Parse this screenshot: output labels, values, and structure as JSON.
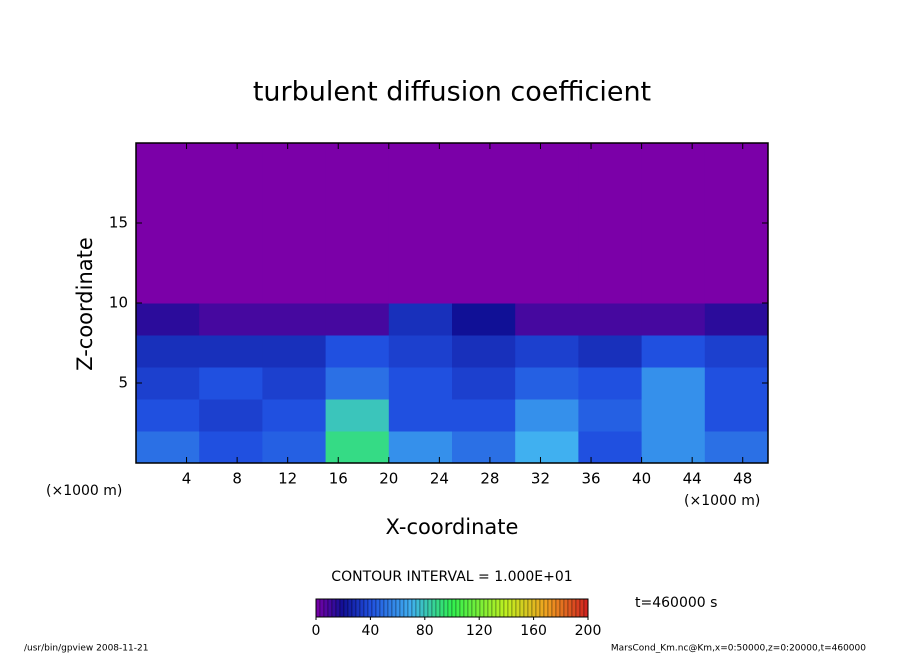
{
  "chart_data": {
    "type": "heatmap",
    "title": "turbulent diffusion coefficient",
    "x_label": "X-coordinate",
    "y_label": "Z-coordinate",
    "x_unit": "(×1000 m)",
    "y_unit": "(×1000 m)",
    "xlim": [
      0,
      50
    ],
    "xticks": [
      4,
      8,
      12,
      16,
      20,
      24,
      28,
      32,
      36,
      40,
      44,
      48
    ],
    "ylim": [
      0,
      20
    ],
    "yticks": [
      5,
      10,
      15
    ],
    "x_bins": [
      0,
      5,
      10,
      15,
      20,
      25,
      30,
      35,
      40,
      45,
      50
    ],
    "y_bins": [
      0,
      2,
      4,
      6,
      8,
      10,
      12,
      14,
      16,
      18,
      20
    ],
    "values": [
      [
        50,
        40,
        45,
        90,
        60,
        50,
        70,
        40,
        60,
        50
      ],
      [
        40,
        35,
        40,
        80,
        40,
        40,
        60,
        45,
        60,
        40
      ],
      [
        35,
        40,
        35,
        50,
        40,
        35,
        45,
        40,
        60,
        40
      ],
      [
        30,
        30,
        30,
        40,
        35,
        30,
        35,
        30,
        40,
        35
      ],
      [
        15,
        10,
        10,
        10,
        30,
        20,
        10,
        10,
        10,
        15
      ],
      [
        0,
        0,
        0,
        0,
        0,
        0,
        0,
        0,
        0,
        0
      ],
      [
        0,
        0,
        0,
        0,
        0,
        0,
        0,
        0,
        0,
        0
      ],
      [
        0,
        0,
        0,
        0,
        0,
        0,
        0,
        0,
        0,
        0
      ],
      [
        0,
        0,
        0,
        0,
        0,
        0,
        0,
        0,
        0,
        0
      ],
      [
        0,
        0,
        0,
        0,
        0,
        0,
        0,
        0,
        0,
        0
      ]
    ],
    "colorbar": {
      "lim": [
        0,
        200
      ],
      "ticks": [
        0,
        40,
        80,
        120,
        160,
        200
      ]
    },
    "contour_interval": "CONTOUR INTERVAL = 1.000E+01",
    "time_label": "t=460000 s",
    "footer_left": "/usr/bin/gpview  2008-11-21",
    "footer_right": "MarsCond_Km.nc@Km,x=0:50000,z=0:20000,t=460000"
  }
}
